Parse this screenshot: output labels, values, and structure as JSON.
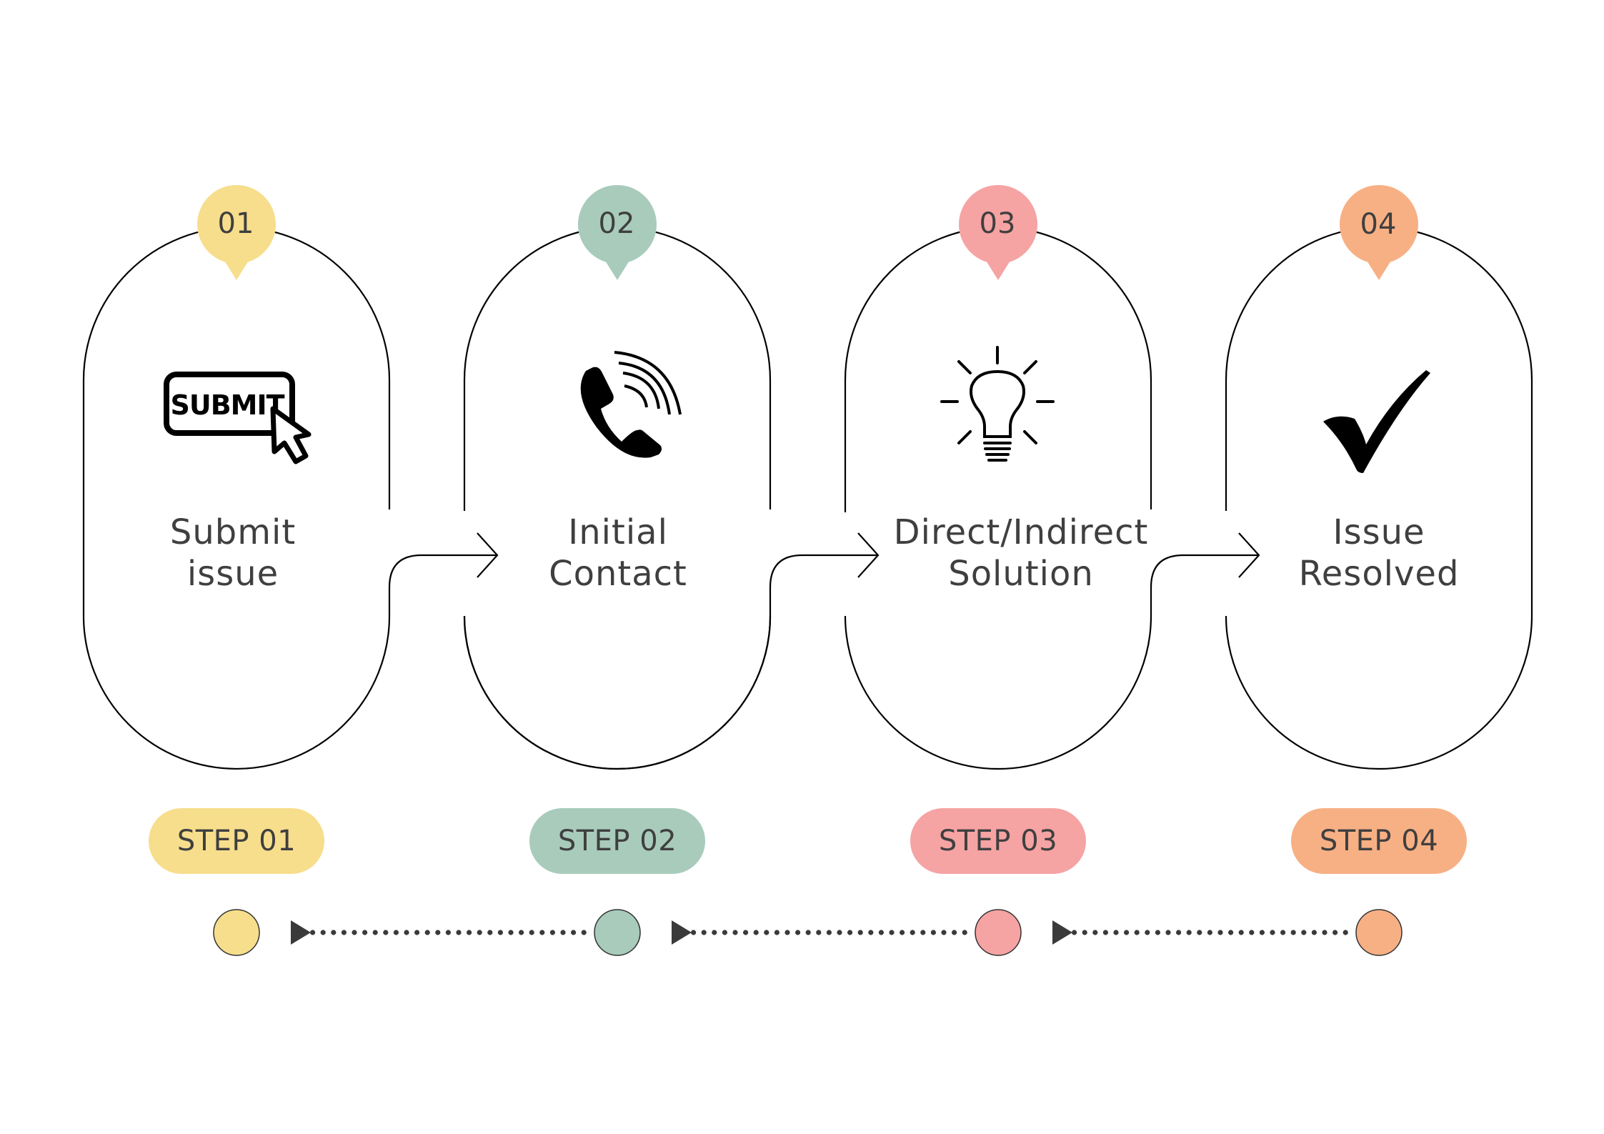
{
  "steps": [
    {
      "number": "01",
      "title_lines": [
        "Submit",
        "issue"
      ],
      "step_label": "STEP 01",
      "color": "#F7DE8C",
      "icon": "submit-button-icon"
    },
    {
      "number": "02",
      "title_lines": [
        "Initial",
        "Contact"
      ],
      "step_label": "STEP 02",
      "color": "#A8CBBC",
      "icon": "phone-icon"
    },
    {
      "number": "03",
      "title_lines": [
        "Direct/Indirect",
        "Solution"
      ],
      "step_label": "STEP 03",
      "color": "#F6A3A3",
      "icon": "lightbulb-icon"
    },
    {
      "number": "04",
      "title_lines": [
        "Issue",
        "Resolved"
      ],
      "step_label": "STEP 04",
      "color": "#F7B084",
      "icon": "checkmark-icon"
    }
  ],
  "icons": {
    "submit_text": "SUBMIT"
  },
  "colors": {
    "line": "#000000",
    "text": "#3f3f3f",
    "timeline": "#3a3a3a"
  }
}
